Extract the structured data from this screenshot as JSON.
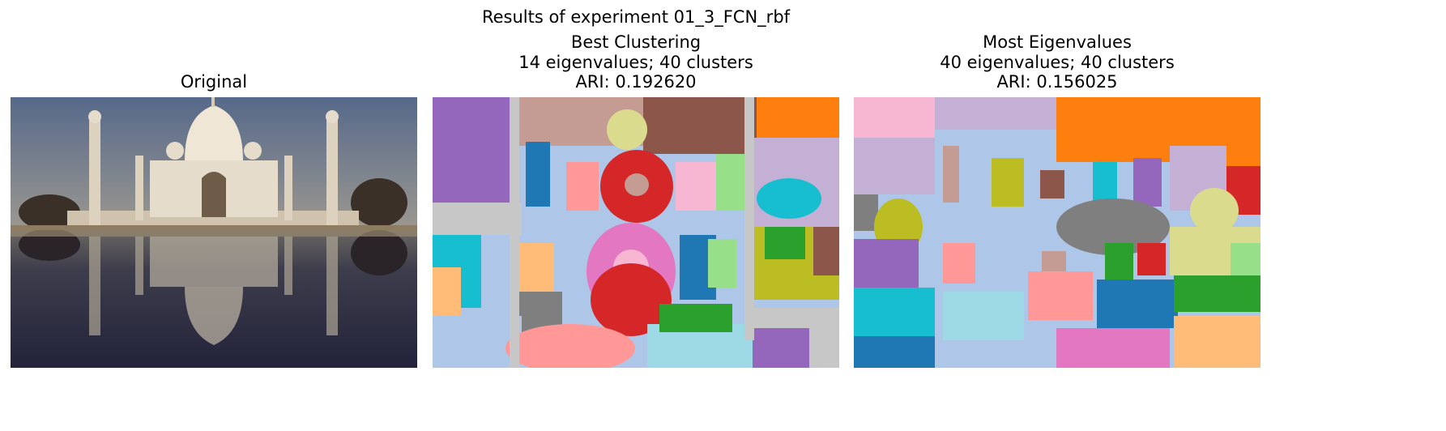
{
  "figure": {
    "suptitle": "Results of experiment 01_3_FCN_rbf"
  },
  "panels": [
    {
      "title_lines": [
        "Original"
      ]
    },
    {
      "title_lines": [
        "Best Clustering",
        "14 eigenvalues; 40 clusters",
        "ARI: 0.192620"
      ]
    },
    {
      "title_lines": [
        "Most Eigenvalues",
        "40 eigenvalues; 40 clusters",
        "ARI: 0.156025"
      ]
    }
  ],
  "colors": {
    "sky_top": "#56698a",
    "sky_bottom": "#9a9790",
    "water": "#2e2e44",
    "marble": "#e6dccb"
  }
}
